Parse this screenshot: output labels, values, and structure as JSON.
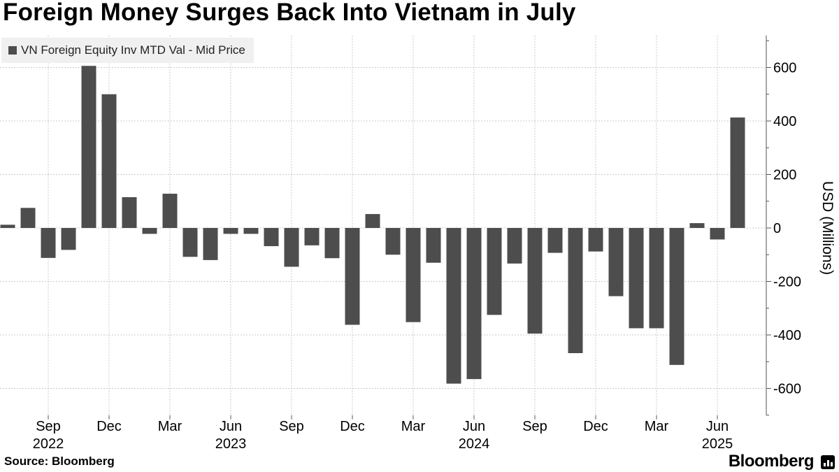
{
  "title": "Foreign Money Surges Back Into Vietnam in July",
  "source": "Source: Bloomberg",
  "brand": "Bloomberg",
  "colors": {
    "bar": "#4d4d4d",
    "grid": "#c8c8c8",
    "axis": "#555555"
  },
  "chart_data": {
    "type": "bar",
    "title": "Foreign Money Surges Back Into Vietnam in July",
    "ylabel": "USD (Millions)",
    "ylim": [
      -700,
      720
    ],
    "yticks": [
      600,
      400,
      200,
      0,
      -200,
      -400,
      -600
    ],
    "ytick_labels": [
      "600",
      "400",
      "200",
      "0",
      "-200",
      "-400",
      "-600"
    ],
    "y_axis_side": "right",
    "grid": true,
    "legend": "top-left",
    "categories": [
      "2022-07",
      "2022-08",
      "2022-09",
      "2022-10",
      "2022-11",
      "2022-12",
      "2023-01",
      "2023-02",
      "2023-03",
      "2023-04",
      "2023-05",
      "2023-06",
      "2023-07",
      "2023-08",
      "2023-09",
      "2023-10",
      "2023-11",
      "2023-12",
      "2024-01",
      "2024-02",
      "2024-03",
      "2024-04",
      "2024-05",
      "2024-06",
      "2024-07",
      "2024-08",
      "2024-09",
      "2024-10",
      "2024-11",
      "2024-12",
      "2025-01",
      "2025-02",
      "2025-03",
      "2025-04",
      "2025-05",
      "2025-06",
      "2025-07"
    ],
    "series": [
      {
        "name": "VN Foreign Equity Inv MTD Val - Mid Price",
        "values": [
          12,
          75,
          -112,
          -82,
          606,
          500,
          115,
          -22,
          128,
          -108,
          -120,
          -22,
          -22,
          -68,
          -145,
          -65,
          -113,
          -362,
          52,
          -100,
          -352,
          -130,
          -582,
          -565,
          -325,
          -133,
          -395,
          -93,
          -468,
          -88,
          -255,
          -375,
          -375,
          -512,
          18,
          -43,
          413
        ]
      }
    ],
    "x_ticks": [
      {
        "category": "2022-09",
        "label": "Sep",
        "year": "2022"
      },
      {
        "category": "2022-12",
        "label": "Dec",
        "year": ""
      },
      {
        "category": "2023-03",
        "label": "Mar",
        "year": ""
      },
      {
        "category": "2023-06",
        "label": "Jun",
        "year": "2023"
      },
      {
        "category": "2023-09",
        "label": "Sep",
        "year": ""
      },
      {
        "category": "2023-12",
        "label": "Dec",
        "year": ""
      },
      {
        "category": "2024-03",
        "label": "Mar",
        "year": ""
      },
      {
        "category": "2024-06",
        "label": "Jun",
        "year": "2024"
      },
      {
        "category": "2024-09",
        "label": "Sep",
        "year": ""
      },
      {
        "category": "2024-12",
        "label": "Dec",
        "year": ""
      },
      {
        "category": "2025-03",
        "label": "Mar",
        "year": ""
      },
      {
        "category": "2025-06",
        "label": "Jun",
        "year": "2025"
      }
    ]
  }
}
